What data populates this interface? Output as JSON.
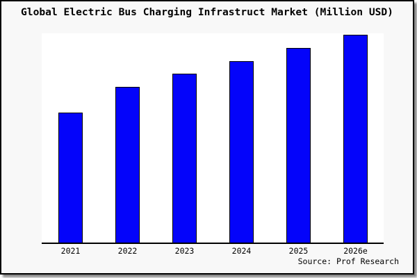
{
  "title": "Global Electric Bus Charging Infrastruct Market (Million USD)",
  "source_label": "Source: Prof Research",
  "colors": {
    "bar_fill": "#0404fa",
    "bar_border": "#000000",
    "figure_background": "#f8f8f8",
    "plot_background": "#ffffff",
    "axis": "#000000",
    "frame_border": "#000000",
    "shadow": "#888888",
    "text": "#000000"
  },
  "chart_data": {
    "type": "bar",
    "title": "Global Electric Bus Charging Infrastruct Market (Million USD)",
    "categories": [
      "2021",
      "2022",
      "2023",
      "2024",
      "2025",
      "2026e"
    ],
    "values": [
      187,
      224,
      243,
      261,
      280,
      299
    ],
    "values_note": "y-axis has no tick labels; values are relative units estimated from bar heights (plot height = 301)",
    "xlabel": "",
    "ylabel": "",
    "ylim": [
      0,
      301
    ],
    "grid": false,
    "legend": "none",
    "source_label": "Source: Prof Research"
  }
}
